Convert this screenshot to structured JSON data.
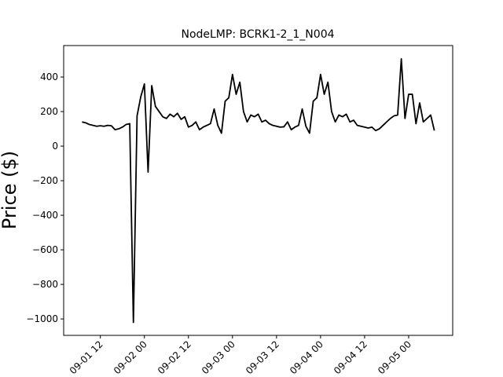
{
  "chart_data": {
    "type": "line",
    "title": "NodeLMP: BCRK1-2_1_N004",
    "y_label": "Price ($)",
    "x": [
      "09-01 07",
      "09-01 08",
      "09-01 09",
      "09-01 10",
      "09-01 11",
      "09-01 12",
      "09-01 13",
      "09-01 14",
      "09-01 15",
      "09-01 16",
      "09-01 17",
      "09-01 18",
      "09-01 19",
      "09-01 20",
      "09-01 21",
      "09-01 22",
      "09-01 23",
      "09-02 00",
      "09-02 01",
      "09-02 02",
      "09-02 03",
      "09-02 04",
      "09-02 05",
      "09-02 06",
      "09-02 07",
      "09-02 08",
      "09-02 09",
      "09-02 10",
      "09-02 11",
      "09-02 12",
      "09-02 13",
      "09-02 14",
      "09-02 15",
      "09-02 16",
      "09-02 17",
      "09-02 18",
      "09-02 19",
      "09-02 20",
      "09-02 21",
      "09-02 22",
      "09-02 23",
      "09-03 00",
      "09-03 01",
      "09-03 02",
      "09-03 03",
      "09-03 04",
      "09-03 05",
      "09-03 06",
      "09-03 07",
      "09-03 08",
      "09-03 09",
      "09-03 10",
      "09-03 11",
      "09-03 12",
      "09-03 13",
      "09-03 14",
      "09-03 15",
      "09-03 16",
      "09-03 17",
      "09-03 18",
      "09-03 19",
      "09-03 20",
      "09-03 21",
      "09-03 22",
      "09-03 23",
      "09-04 00",
      "09-04 01",
      "09-04 02",
      "09-04 03",
      "09-04 04",
      "09-04 05",
      "09-04 06",
      "09-04 07",
      "09-04 08",
      "09-04 09",
      "09-04 10",
      "09-04 11",
      "09-04 12",
      "09-04 13",
      "09-04 14",
      "09-04 15",
      "09-04 16",
      "09-04 17",
      "09-04 18",
      "09-04 19",
      "09-04 20",
      "09-04 21",
      "09-04 22",
      "09-04 23",
      "09-05 00",
      "09-05 01",
      "09-05 02",
      "09-05 03",
      "09-05 04",
      "09-05 05",
      "09-05 06",
      "09-05 07"
    ],
    "series": [
      {
        "name": "NodeLMP",
        "color": "#000000",
        "values": [
          140,
          135,
          125,
          120,
          115,
          118,
          115,
          120,
          118,
          95,
          100,
          110,
          125,
          130,
          -1020,
          175,
          285,
          360,
          -150,
          350,
          230,
          200,
          170,
          160,
          185,
          170,
          190,
          155,
          170,
          110,
          120,
          140,
          95,
          110,
          120,
          130,
          215,
          120,
          75,
          260,
          280,
          415,
          300,
          370,
          200,
          140,
          180,
          170,
          185,
          140,
          150,
          130,
          120,
          115,
          110,
          112,
          140,
          95,
          110,
          120,
          215,
          115,
          75,
          260,
          280,
          415,
          300,
          370,
          200,
          140,
          180,
          170,
          185,
          140,
          150,
          120,
          115,
          110,
          105,
          110,
          90,
          100,
          120,
          140,
          160,
          175,
          180,
          505,
          160,
          300,
          300,
          130,
          250,
          140,
          160,
          180,
          90
        ]
      }
    ],
    "xlim": [
      "09-01 02",
      "09-05 12"
    ],
    "xticks": [
      "09-01 12",
      "09-02 00",
      "09-02 12",
      "09-03 00",
      "09-03 12",
      "09-04 00",
      "09-04 12",
      "09-05 00"
    ],
    "ylim": [
      -1095,
      582
    ],
    "yticks": [
      {
        "value": -1000,
        "label": "−1000"
      },
      {
        "value": -800,
        "label": "−800"
      },
      {
        "value": -600,
        "label": "−600"
      },
      {
        "value": -400,
        "label": "−400"
      },
      {
        "value": -200,
        "label": "−200"
      },
      0,
      200,
      400
    ]
  }
}
